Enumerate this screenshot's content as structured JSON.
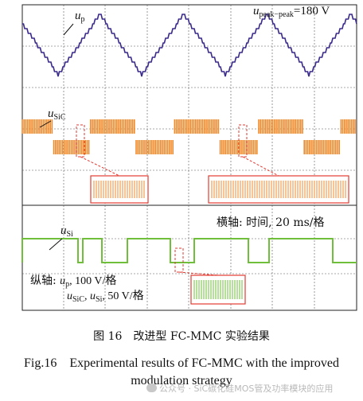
{
  "figure": {
    "up_label_var": "u",
    "up_label_sub": "p",
    "usic_label_var": "u",
    "usic_label_sub": "SiC",
    "usi_label_var": "u",
    "usi_label_sub": "Si",
    "peak_var": "u",
    "peak_sub": "peak−peak",
    "peak_value": "=180 V",
    "horizontal_axis_note": "横轴: 时间, 20 ms/格",
    "vertical_axis_note_prefix": "纵轴: ",
    "vertical_axis_line1_var": "u",
    "vertical_axis_line1_sub": "p",
    "vertical_axis_line1_rest": ", 100 V/格",
    "vertical_axis_line2_var1": "u",
    "vertical_axis_line2_sub1": "SiC",
    "vertical_axis_line2_sep": ", ",
    "vertical_axis_line2_var2": "u",
    "vertical_axis_line2_sub2": "Si",
    "vertical_axis_line2_rest": ", 50 V/格"
  },
  "colors": {
    "up_trace": "#3b2a8c",
    "usic_trace": "#ee8a2c",
    "usi_trace": "#6fbf3a",
    "grid": "#555555",
    "zoom_box": "#e23b33"
  },
  "caption": {
    "cn": "图 16　改进型 FC-MMC 实验结果",
    "en": "Fig.16　Experimental results of FC-MMC with the improved modulation strategy"
  },
  "watermark": {
    "text": "公众号 · SiC碳化硅MOS管及功率模块的应用"
  }
}
